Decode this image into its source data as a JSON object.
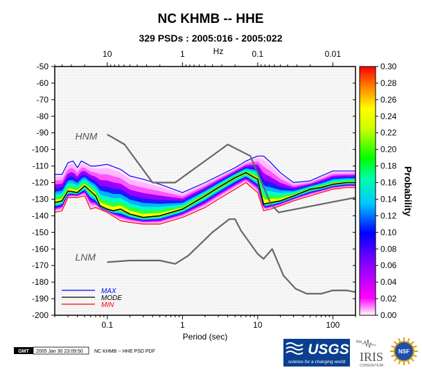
{
  "chart_data": {
    "type": "heatmap",
    "title": "NC KHMB -- HHE",
    "subtitle": "329 PSDs : 2005:016 - 2005:022",
    "xlabel": "Period (sec)",
    "x_scale": "log",
    "xlim": [
      0.02,
      200
    ],
    "x_ticks": [
      {
        "value": 0.1,
        "label": "0.1"
      },
      {
        "value": 1,
        "label": "1"
      },
      {
        "value": 10,
        "label": "10"
      },
      {
        "value": 100,
        "label": "100"
      }
    ],
    "top_axis": {
      "label": "Hz",
      "ticks": [
        {
          "value": 10,
          "label": "10"
        },
        {
          "value": 1,
          "label": "1"
        },
        {
          "value": 0.1,
          "label": "0.1"
        },
        {
          "value": 0.01,
          "label": "0.01"
        }
      ]
    },
    "ylim": [
      -200,
      -50
    ],
    "y_ticks": [
      -50,
      -60,
      -70,
      -80,
      -90,
      -100,
      -110,
      -120,
      -130,
      -140,
      -150,
      -160,
      -170,
      -180,
      -190,
      -200
    ],
    "colorbar": {
      "label": "Probability",
      "range": [
        0.0,
        0.3
      ],
      "ticks": [
        "0.00",
        "0.02",
        "0.04",
        "0.06",
        "0.08",
        "0.10",
        "0.12",
        "0.14",
        "0.16",
        "0.18",
        "0.20",
        "0.22",
        "0.24",
        "0.26",
        "0.28",
        "0.30"
      ]
    },
    "annotations": [
      {
        "text": "HNM",
        "x": 0.025,
        "y": -92
      },
      {
        "text": "LNM",
        "x": 0.025,
        "y": -165
      }
    ],
    "legend": {
      "position": "bottom-left",
      "entries": [
        {
          "name": "MAX",
          "color": "#0000ff"
        },
        {
          "name": "MODE",
          "color": "#000000"
        },
        {
          "name": "MIN",
          "color": "#ff0000"
        }
      ]
    },
    "series": [
      {
        "name": "MAX",
        "color": "#0000ff",
        "x": [
          0.02,
          0.025,
          0.03,
          0.035,
          0.04,
          0.045,
          0.05,
          0.06,
          0.07,
          0.1,
          0.15,
          0.2,
          0.3,
          0.5,
          1,
          2,
          3,
          5,
          7,
          10,
          12,
          15,
          20,
          30,
          50,
          70,
          100,
          150,
          200
        ],
        "y": [
          -115,
          -115,
          -108,
          -107,
          -111,
          -107,
          -108,
          -110,
          -110,
          -109,
          -112,
          -116,
          -118,
          -121,
          -126,
          -120,
          -116,
          -111,
          -107,
          -104,
          -104,
          -108,
          -114,
          -120,
          -119,
          -116,
          -113,
          -113,
          -113
        ]
      },
      {
        "name": "MODE",
        "color": "#000000",
        "x": [
          0.02,
          0.025,
          0.03,
          0.04,
          0.05,
          0.07,
          0.08,
          0.1,
          0.12,
          0.15,
          0.2,
          0.3,
          0.5,
          1,
          2,
          3,
          5,
          7,
          10,
          12,
          15,
          20,
          30,
          50,
          70,
          100,
          150,
          200
        ],
        "y": [
          -132,
          -131,
          -125,
          -126,
          -122,
          -128,
          -134,
          -136,
          -137,
          -136,
          -139,
          -141,
          -140,
          -136,
          -128,
          -123,
          -117,
          -114,
          -118,
          -133,
          -132,
          -131,
          -128,
          -124,
          -123,
          -121,
          -120,
          -120
        ]
      },
      {
        "name": "MIN",
        "color": "#ff0000",
        "x": [
          0.02,
          0.025,
          0.03,
          0.04,
          0.05,
          0.06,
          0.07,
          0.1,
          0.15,
          0.2,
          0.3,
          0.5,
          1,
          2,
          3,
          5,
          7,
          10,
          12,
          15,
          20,
          30,
          50,
          70,
          100,
          150,
          200
        ],
        "y": [
          -138,
          -137,
          -129,
          -129,
          -128,
          -136,
          -135,
          -138,
          -143,
          -144,
          -145,
          -145,
          -141,
          -135,
          -130,
          -124,
          -120,
          -126,
          -137,
          -136,
          -134,
          -131,
          -128,
          -126,
          -124,
          -123,
          -123
        ]
      },
      {
        "name": "HNM",
        "color": "#666666",
        "x": [
          0.1,
          0.17,
          0.4,
          0.8,
          4,
          8,
          15,
          19,
          200
        ],
        "y": [
          -91,
          -97,
          -120,
          -120,
          -97,
          -104,
          -133,
          -138,
          -129
        ]
      },
      {
        "name": "LNM",
        "color": "#666666",
        "x": [
          0.1,
          0.2,
          0.5,
          0.8,
          1.2,
          2.5,
          4.2,
          5,
          6,
          10,
          12,
          15.6,
          22,
          32,
          45,
          70,
          100,
          150,
          200
        ],
        "y": [
          -168,
          -167,
          -167,
          -169,
          -164,
          -150,
          -142,
          -142,
          -149,
          -163,
          -166,
          -160,
          -176,
          -184,
          -187,
          -187,
          -185,
          -185,
          -186
        ]
      }
    ]
  },
  "footer": {
    "gmt_logo": "GMT",
    "timestamp": "2005 Jan 30 23:09:50",
    "caption": "NC KHMB -- HHE PSD PDF"
  },
  "logos": {
    "usgs_name": "USGS",
    "usgs_tagline": "science for a changing world",
    "iris_name": "IRIS",
    "iris_prefix": "the",
    "iris_sub": "CONSORTIUM",
    "nsf_name": "NSF"
  }
}
